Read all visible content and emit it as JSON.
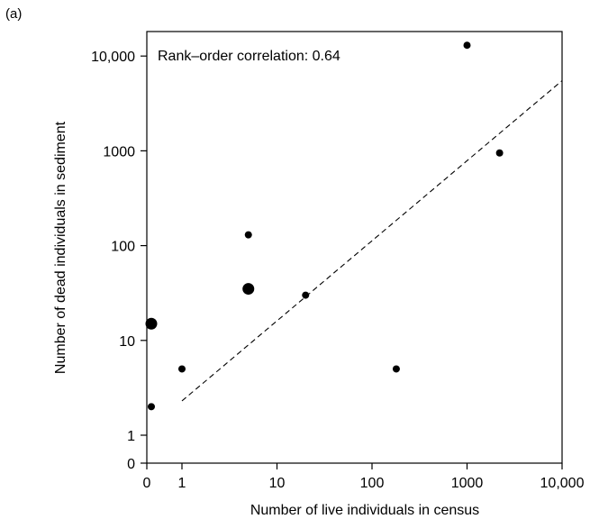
{
  "panel_label": "(a)",
  "chart_data": {
    "type": "scatter",
    "title": "",
    "xlabel": "Number of live individuals in census",
    "ylabel": "Number of dead individuals in sediment",
    "x_scale": "log (with 0 shown separately)",
    "y_scale": "log (with 0 shown separately)",
    "xlim": [
      0,
      10000
    ],
    "ylim": [
      0,
      10000
    ],
    "x_ticks": [
      {
        "value": 0,
        "label": "0"
      },
      {
        "value": 1,
        "label": "1"
      },
      {
        "value": 10,
        "label": "10"
      },
      {
        "value": 100,
        "label": "100"
      },
      {
        "value": 1000,
        "label": "1000"
      },
      {
        "value": 10000,
        "label": "10,000"
      }
    ],
    "y_ticks": [
      {
        "value": 0,
        "label": "0"
      },
      {
        "value": 1,
        "label": "1"
      },
      {
        "value": 10,
        "label": "10"
      },
      {
        "value": 100,
        "label": "100"
      },
      {
        "value": 1000,
        "label": "1000"
      },
      {
        "value": 10000,
        "label": "10,000"
      }
    ],
    "annotation": "Rank–order correlation: 0.64",
    "grid": false,
    "points": [
      {
        "x": 0,
        "y": 2,
        "size": "small"
      },
      {
        "x": 0,
        "y": 15,
        "size": "large"
      },
      {
        "x": 1,
        "y": 5,
        "size": "small"
      },
      {
        "x": 5,
        "y": 130,
        "size": "small"
      },
      {
        "x": 5,
        "y": 35,
        "size": "large"
      },
      {
        "x": 20,
        "y": 30,
        "size": "small"
      },
      {
        "x": 180,
        "y": 5,
        "size": "small"
      },
      {
        "x": 1000,
        "y": 13000,
        "size": "small"
      },
      {
        "x": 2200,
        "y": 950,
        "size": "small"
      }
    ],
    "trend_line": {
      "style": "dashed",
      "x": [
        1,
        10000
      ],
      "y": [
        2.3,
        5500
      ]
    }
  }
}
